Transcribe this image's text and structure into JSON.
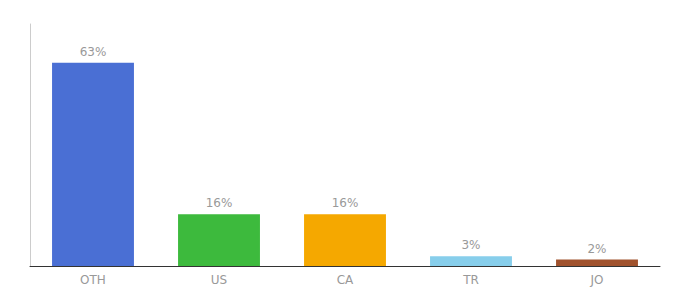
{
  "chart_data": {
    "type": "bar",
    "categories": [
      "OTH",
      "US",
      "CA",
      "TR",
      "JO"
    ],
    "values": [
      63,
      16,
      16,
      3,
      2
    ],
    "value_labels": [
      "63%",
      "16%",
      "16%",
      "3%",
      "2%"
    ],
    "colors": [
      "#4a6fd4",
      "#3dba3d",
      "#f5a800",
      "#87ceeb",
      "#a0522d"
    ],
    "ylim": [
      0,
      75
    ],
    "data_labels": true,
    "tick_labels": "x",
    "grid": false
  }
}
